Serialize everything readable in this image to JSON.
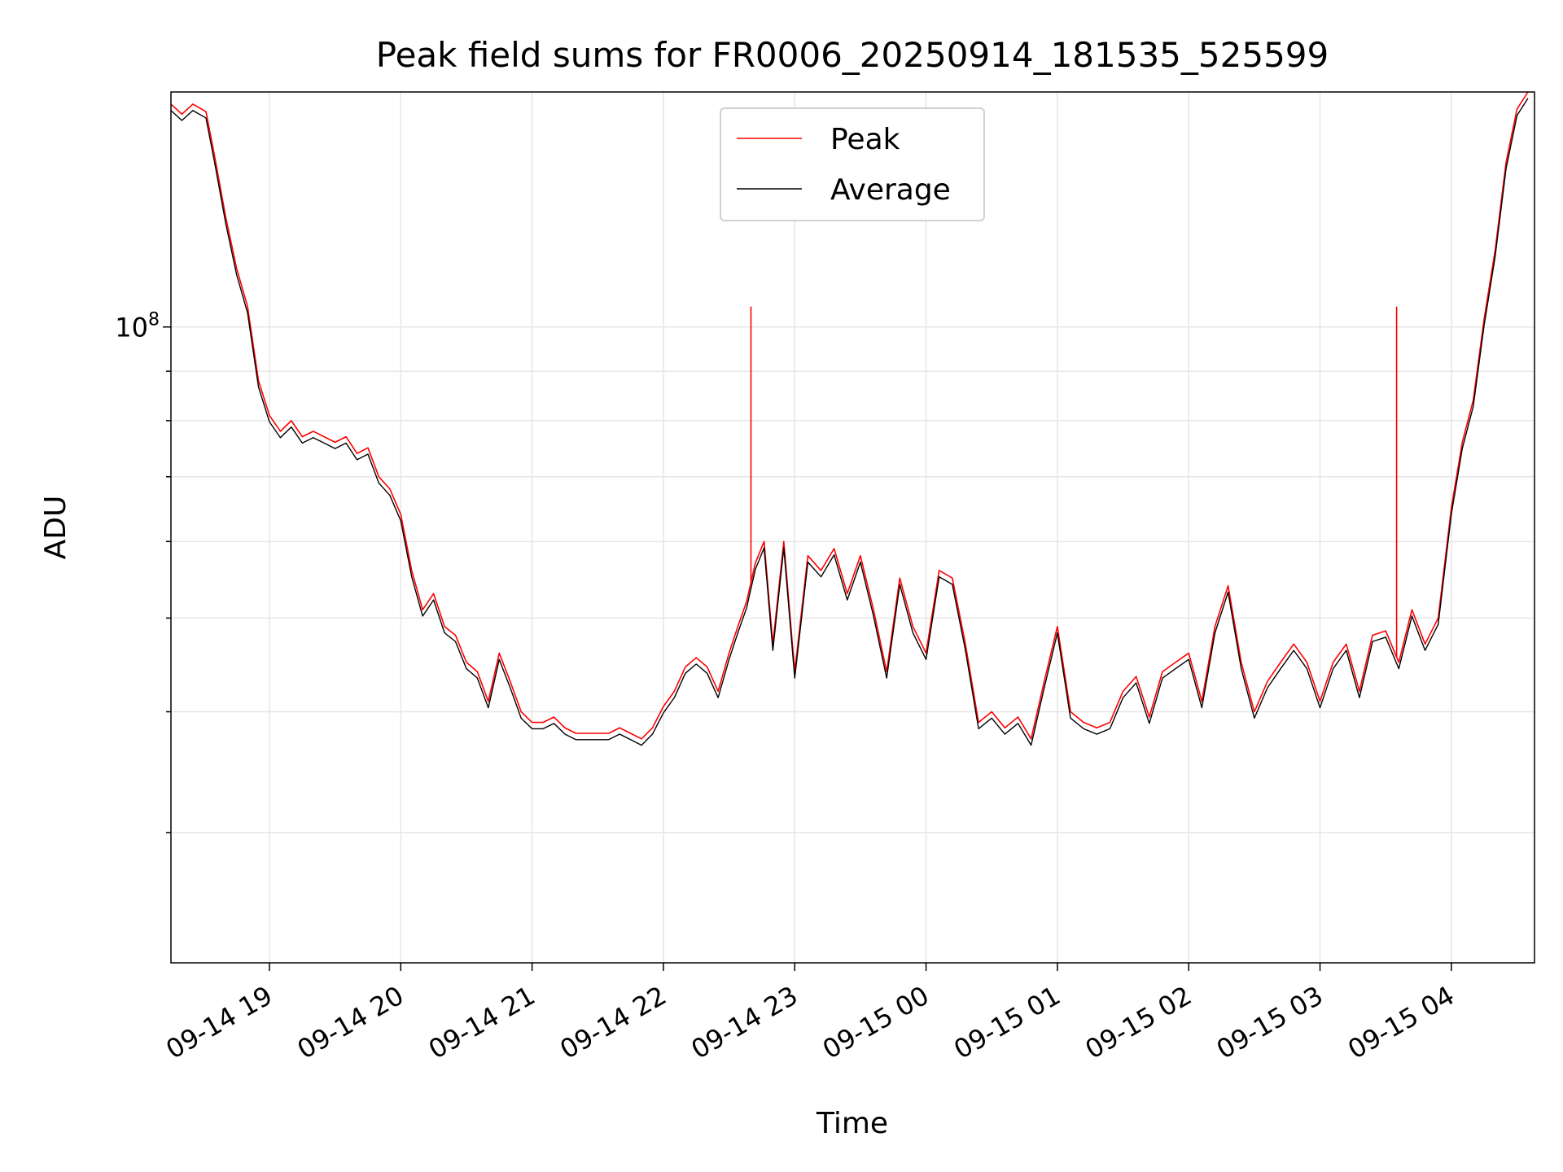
{
  "chart_data": {
    "type": "line",
    "title": "Peak field sums for FR0006_20250914_181535_525599",
    "xlabel": "Time",
    "ylabel": "ADU",
    "y_scale": "log",
    "y_tick_label": {
      "base": "10",
      "exponent": "8"
    },
    "ylim": [
      22000000.0,
      175000000.0
    ],
    "xlim": [
      "2025-09-14 18:15",
      "2025-09-15 04:38"
    ],
    "x_ticks": [
      {
        "t": "2025-09-14 19:00",
        "label": "09-14 19"
      },
      {
        "t": "2025-09-14 20:00",
        "label": "09-14 20"
      },
      {
        "t": "2025-09-14 21:00",
        "label": "09-14 21"
      },
      {
        "t": "2025-09-14 22:00",
        "label": "09-14 22"
      },
      {
        "t": "2025-09-14 23:00",
        "label": "09-14 23"
      },
      {
        "t": "2025-09-15 00:00",
        "label": "09-15 00"
      },
      {
        "t": "2025-09-15 01:00",
        "label": "09-15 01"
      },
      {
        "t": "2025-09-15 02:00",
        "label": "09-15 02"
      },
      {
        "t": "2025-09-15 03:00",
        "label": "09-15 03"
      },
      {
        "t": "2025-09-15 04:00",
        "label": "09-15 04"
      }
    ],
    "grid": true,
    "legend_position": "upper center",
    "series": [
      {
        "name": "Peak",
        "color": "#ff0000",
        "points": [
          [
            "2025-09-14 18:15",
            170000000.0
          ],
          [
            "2025-09-14 18:20",
            166000000.0
          ],
          [
            "2025-09-14 18:25",
            170000000.0
          ],
          [
            "2025-09-14 18:31",
            167000000.0
          ],
          [
            "2025-09-14 18:35",
            150000000.0
          ],
          [
            "2025-09-14 18:40",
            130000000.0
          ],
          [
            "2025-09-14 18:45",
            115000000.0
          ],
          [
            "2025-09-14 18:50",
            105000000.0
          ],
          [
            "2025-09-14 18:55",
            88000000.0
          ],
          [
            "2025-09-14 19:00",
            81000000.0
          ],
          [
            "2025-09-14 19:05",
            78000000.0
          ],
          [
            "2025-09-14 19:10",
            80000000.0
          ],
          [
            "2025-09-14 19:15",
            77000000.0
          ],
          [
            "2025-09-14 19:20",
            78000000.0
          ],
          [
            "2025-09-14 19:25",
            77000000.0
          ],
          [
            "2025-09-14 19:30",
            76000000.0
          ],
          [
            "2025-09-14 19:35",
            77000000.0
          ],
          [
            "2025-09-14 19:40",
            74000000.0
          ],
          [
            "2025-09-14 19:45",
            75000000.0
          ],
          [
            "2025-09-14 19:50",
            70000000.0
          ],
          [
            "2025-09-14 19:55",
            68000000.0
          ],
          [
            "2025-09-14 20:00",
            64000000.0
          ],
          [
            "2025-09-14 20:05",
            56000000.0
          ],
          [
            "2025-09-14 20:10",
            51000000.0
          ],
          [
            "2025-09-14 20:15",
            53000000.0
          ],
          [
            "2025-09-14 20:20",
            49000000.0
          ],
          [
            "2025-09-14 20:25",
            48000000.0
          ],
          [
            "2025-09-14 20:30",
            45000000.0
          ],
          [
            "2025-09-14 20:35",
            44000000.0
          ],
          [
            "2025-09-14 20:40",
            41000000.0
          ],
          [
            "2025-09-14 20:45",
            46000000.0
          ],
          [
            "2025-09-14 20:50",
            43000000.0
          ],
          [
            "2025-09-14 20:55",
            40000000.0
          ],
          [
            "2025-09-14 21:00",
            39000000.0
          ],
          [
            "2025-09-14 21:05",
            39000000.0
          ],
          [
            "2025-09-14 21:10",
            39500000.0
          ],
          [
            "2025-09-14 21:15",
            38500000.0
          ],
          [
            "2025-09-14 21:20",
            38000000.0
          ],
          [
            "2025-09-14 21:25",
            38000000.0
          ],
          [
            "2025-09-14 21:30",
            38000000.0
          ],
          [
            "2025-09-14 21:35",
            38000000.0
          ],
          [
            "2025-09-14 21:40",
            38500000.0
          ],
          [
            "2025-09-14 21:45",
            38000000.0
          ],
          [
            "2025-09-14 21:50",
            37500000.0
          ],
          [
            "2025-09-14 21:55",
            38500000.0
          ],
          [
            "2025-09-14 22:00",
            40500000.0
          ],
          [
            "2025-09-14 22:05",
            42000000.0
          ],
          [
            "2025-09-14 22:10",
            44500000.0
          ],
          [
            "2025-09-14 22:15",
            45500000.0
          ],
          [
            "2025-09-14 22:20",
            44500000.0
          ],
          [
            "2025-09-14 22:25",
            42000000.0
          ],
          [
            "2025-09-14 22:30",
            46000000.0
          ],
          [
            "2025-09-14 22:34",
            49000000.0
          ],
          [
            "2025-09-14 22:38",
            52000000.0
          ],
          [
            "2025-09-14 22:42",
            57000000.0
          ],
          [
            "2025-09-14 22:46",
            60000000.0
          ],
          [
            "2025-09-14 22:50",
            47000000.0
          ],
          [
            "2025-09-14 22:55",
            60000000.0
          ],
          [
            "2025-09-14 23:00",
            44000000.0
          ],
          [
            "2025-09-14 23:06",
            58000000.0
          ],
          [
            "2025-09-14 23:12",
            56000000.0
          ],
          [
            "2025-09-14 23:18",
            59000000.0
          ],
          [
            "2025-09-14 23:24",
            53000000.0
          ],
          [
            "2025-09-14 23:30",
            58000000.0
          ],
          [
            "2025-09-14 23:36",
            51000000.0
          ],
          [
            "2025-09-14 23:42",
            44000000.0
          ],
          [
            "2025-09-14 23:48",
            55000000.0
          ],
          [
            "2025-09-14 23:54",
            49000000.0
          ],
          [
            "2025-09-15 00:00",
            46000000.0
          ],
          [
            "2025-09-15 00:06",
            56000000.0
          ],
          [
            "2025-09-15 00:12",
            55000000.0
          ],
          [
            "2025-09-15 00:18",
            47000000.0
          ],
          [
            "2025-09-15 00:24",
            39000000.0
          ],
          [
            "2025-09-15 00:30",
            40000000.0
          ],
          [
            "2025-09-15 00:36",
            38500000.0
          ],
          [
            "2025-09-15 00:42",
            39500000.0
          ],
          [
            "2025-09-15 00:48",
            37500000.0
          ],
          [
            "2025-09-15 00:54",
            43000000.0
          ],
          [
            "2025-09-15 01:00",
            49000000.0
          ],
          [
            "2025-09-15 01:06",
            40000000.0
          ],
          [
            "2025-09-15 01:12",
            39000000.0
          ],
          [
            "2025-09-15 01:18",
            38500000.0
          ],
          [
            "2025-09-15 01:24",
            39000000.0
          ],
          [
            "2025-09-15 01:30",
            42000000.0
          ],
          [
            "2025-09-15 01:36",
            43500000.0
          ],
          [
            "2025-09-15 01:42",
            39500000.0
          ],
          [
            "2025-09-15 01:48",
            44000000.0
          ],
          [
            "2025-09-15 01:54",
            45000000.0
          ],
          [
            "2025-09-15 02:00",
            46000000.0
          ],
          [
            "2025-09-15 02:06",
            41000000.0
          ],
          [
            "2025-09-15 02:12",
            49000000.0
          ],
          [
            "2025-09-15 02:18",
            54000000.0
          ],
          [
            "2025-09-15 02:24",
            45000000.0
          ],
          [
            "2025-09-15 02:30",
            40000000.0
          ],
          [
            "2025-09-15 02:36",
            43000000.0
          ],
          [
            "2025-09-15 02:42",
            45000000.0
          ],
          [
            "2025-09-15 02:48",
            47000000.0
          ],
          [
            "2025-09-15 02:54",
            45000000.0
          ],
          [
            "2025-09-15 03:00",
            41000000.0
          ],
          [
            "2025-09-15 03:06",
            45000000.0
          ],
          [
            "2025-09-15 03:12",
            47000000.0
          ],
          [
            "2025-09-15 03:18",
            42000000.0
          ],
          [
            "2025-09-15 03:24",
            48000000.0
          ],
          [
            "2025-09-15 03:30",
            48500000.0
          ],
          [
            "2025-09-15 03:36",
            45000000.0
          ],
          [
            "2025-09-15 03:42",
            51000000.0
          ],
          [
            "2025-09-15 03:48",
            47000000.0
          ],
          [
            "2025-09-15 03:54",
            50000000.0
          ],
          [
            "2025-09-15 04:00",
            65000000.0
          ],
          [
            "2025-09-15 04:05",
            76000000.0
          ],
          [
            "2025-09-15 04:10",
            84000000.0
          ],
          [
            "2025-09-15 04:15",
            102000000.0
          ],
          [
            "2025-09-15 04:20",
            120000000.0
          ],
          [
            "2025-09-15 04:25",
            148000000.0
          ],
          [
            "2025-09-15 04:30",
            168000000.0
          ],
          [
            "2025-09-15 04:35",
            175000000.0
          ]
        ],
        "spikes": [
          {
            "t": "2025-09-14 22:40",
            "value": 105000000.0
          },
          {
            "t": "2025-09-15 03:35",
            "value": 105000000.0
          }
        ]
      },
      {
        "name": "Average",
        "color": "#000000",
        "offset_ratio": 0.985
      }
    ]
  }
}
